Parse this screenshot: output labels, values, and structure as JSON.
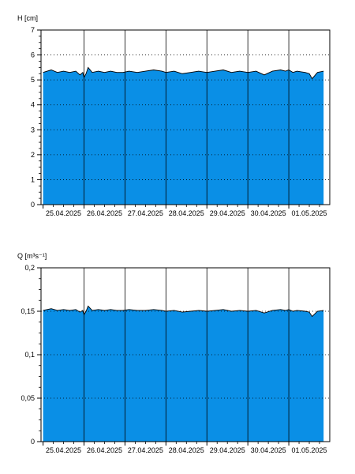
{
  "colors": {
    "fill": "#0a8fe6",
    "outline": "#000000",
    "frame": "#000000",
    "grid": "#000000",
    "background": "#ffffff"
  },
  "x_ticks": [
    "25.04.2025",
    "26.04.2025",
    "27.04.2025",
    "28.04.2025",
    "29.04.2025",
    "30.04.2025",
    "01.05.2025"
  ],
  "chart_data": [
    {
      "type": "area",
      "ylabel": "H [cm]",
      "ylim": [
        0,
        7
      ],
      "xlim": [
        -0.05,
        7.0
      ],
      "yticks": [
        {
          "value": 0,
          "label": "0"
        },
        {
          "value": 1,
          "label": "1"
        },
        {
          "value": 2,
          "label": "2"
        },
        {
          "value": 3,
          "label": "3"
        },
        {
          "value": 4,
          "label": "4"
        },
        {
          "value": 5,
          "label": "5"
        },
        {
          "value": 6,
          "label": "6"
        },
        {
          "value": 7,
          "label": "7"
        }
      ],
      "grid": {
        "horizontal": "dotted",
        "vertical": "solid at day boundaries"
      },
      "series": [
        {
          "x": [
            0,
            0.1,
            0.2,
            0.35,
            0.5,
            0.65,
            0.8,
            0.9,
            0.97,
            1.0,
            1.05,
            1.1,
            1.2,
            1.35,
            1.5,
            1.65,
            1.8,
            1.95,
            2.1,
            2.3,
            2.5,
            2.7,
            2.9,
            3.0,
            3.2,
            3.4,
            3.6,
            3.8,
            4.0,
            4.2,
            4.4,
            4.6,
            4.8,
            5.0,
            5.2,
            5.4,
            5.6,
            5.8,
            5.92,
            6.0,
            6.1,
            6.2,
            6.4,
            6.5,
            6.57,
            6.7,
            6.85
          ],
          "y": [
            5.3,
            5.35,
            5.4,
            5.3,
            5.35,
            5.3,
            5.35,
            5.2,
            5.3,
            5.1,
            5.25,
            5.5,
            5.3,
            5.35,
            5.3,
            5.35,
            5.3,
            5.3,
            5.35,
            5.3,
            5.35,
            5.4,
            5.35,
            5.3,
            5.35,
            5.25,
            5.3,
            5.35,
            5.3,
            5.35,
            5.4,
            5.3,
            5.35,
            5.3,
            5.35,
            5.2,
            5.35,
            5.4,
            5.35,
            5.4,
            5.3,
            5.35,
            5.3,
            5.25,
            5.05,
            5.3,
            5.35
          ]
        }
      ]
    },
    {
      "type": "area",
      "ylabel": "Q [m³s⁻¹]",
      "ylim": [
        0,
        0.2
      ],
      "xlim": [
        -0.05,
        7.0
      ],
      "yticks": [
        {
          "value": 0,
          "label": "0"
        },
        {
          "value": 0.05,
          "label": "0,05"
        },
        {
          "value": 0.1,
          "label": "0,1"
        },
        {
          "value": 0.15,
          "label": "0,15"
        },
        {
          "value": 0.2,
          "label": "0,2"
        }
      ],
      "grid": {
        "horizontal": "dotted",
        "vertical": "solid at day boundaries"
      },
      "series": [
        {
          "x": [
            0,
            0.1,
            0.2,
            0.35,
            0.5,
            0.65,
            0.8,
            0.9,
            0.97,
            1.0,
            1.05,
            1.1,
            1.2,
            1.35,
            1.5,
            1.65,
            1.8,
            1.95,
            2.1,
            2.3,
            2.5,
            2.7,
            2.9,
            3.0,
            3.2,
            3.4,
            3.6,
            3.8,
            4.0,
            4.2,
            4.4,
            4.6,
            4.8,
            5.0,
            5.2,
            5.4,
            5.6,
            5.8,
            5.92,
            6.0,
            6.1,
            6.2,
            6.4,
            6.5,
            6.57,
            6.7,
            6.85
          ],
          "y": [
            0.151,
            0.152,
            0.153,
            0.151,
            0.152,
            0.151,
            0.152,
            0.149,
            0.151,
            0.146,
            0.15,
            0.156,
            0.151,
            0.152,
            0.151,
            0.152,
            0.151,
            0.151,
            0.152,
            0.151,
            0.151,
            0.152,
            0.151,
            0.15,
            0.151,
            0.149,
            0.15,
            0.151,
            0.15,
            0.151,
            0.152,
            0.15,
            0.151,
            0.15,
            0.151,
            0.148,
            0.151,
            0.152,
            0.151,
            0.152,
            0.15,
            0.151,
            0.15,
            0.149,
            0.144,
            0.15,
            0.151
          ]
        }
      ]
    }
  ]
}
